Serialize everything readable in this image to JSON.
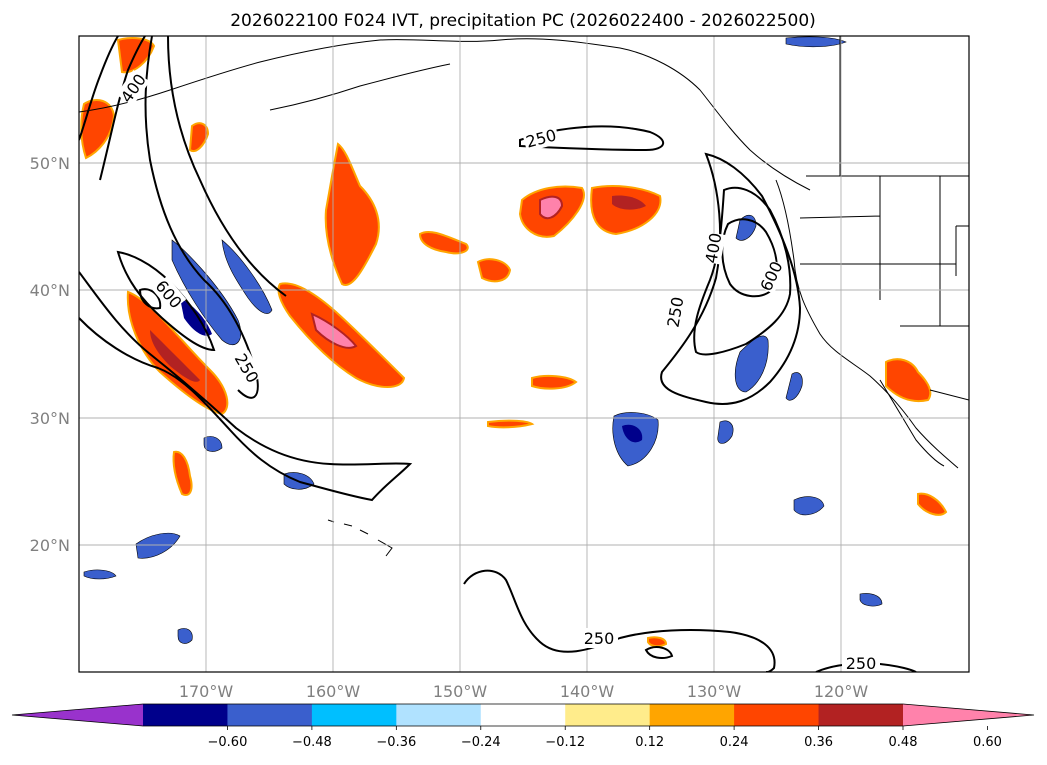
{
  "title": "2026022100 F024 IVT, precipitation PC (2026022400 - 2026022500)",
  "colors": {
    "purple": "#9932cc",
    "navy": "#00008b",
    "royal": "#3a5fcd",
    "deepsky": "#00bfff",
    "lightblue": "#b0e2ff",
    "white": "#ffffff",
    "lightyellow": "#ffec8b",
    "orange": "#ffa500",
    "orangered": "#ff4500",
    "firebrick": "#b22222",
    "pink": "#ff82ab"
  },
  "map": {
    "lat_labels": [
      "50°N",
      "40°N",
      "30°N",
      "20°N"
    ],
    "lon_labels": [
      "170°W",
      "160°W",
      "150°W",
      "140°W",
      "130°W",
      "120°W"
    ],
    "ivt_contour_labels": [
      "400",
      "250",
      "600",
      "250",
      "400",
      "250",
      "600",
      "250",
      "250"
    ]
  },
  "colorbar": {
    "ticks": [
      "−0.60",
      "−0.48",
      "−0.36",
      "−0.24",
      "−0.12",
      "0.12",
      "0.24",
      "0.36",
      "0.48",
      "0.60"
    ],
    "bins": [
      "purple",
      "navy",
      "royal",
      "deepsky",
      "lightblue",
      "white",
      "lightyellow",
      "orange",
      "orangered",
      "firebrick",
      "pink"
    ]
  }
}
